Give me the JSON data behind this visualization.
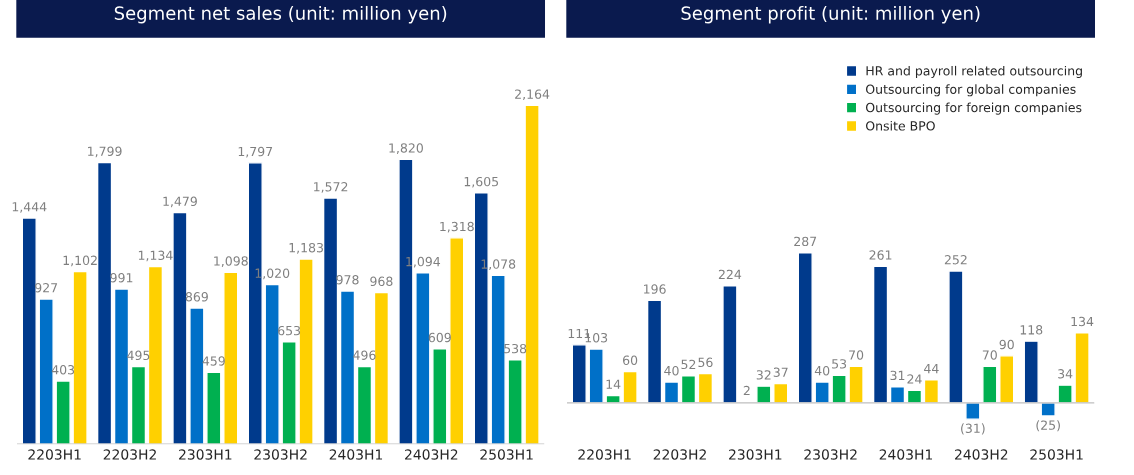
{
  "chart_data": [
    {
      "type": "bar",
      "title": "Segment net sales (unit: million yen)",
      "categories": [
        "2203H1",
        "2203H2",
        "2303H1",
        "2303H2",
        "2403H1",
        "2403H2",
        "2503H1"
      ],
      "tick_labels": "x",
      "grid": false,
      "legend": false,
      "series": [
        {
          "color": "#003a8c",
          "values": [
            1444,
            1799,
            1479,
            1797,
            1572,
            1820,
            1605
          ],
          "value_labels": [
            "1,444",
            "1,799",
            "1,479",
            "1,797",
            "1,572",
            "1,820",
            "1,605"
          ]
        },
        {
          "color": "#0070c8",
          "values": [
            927,
            991,
            869,
            1020,
            978,
            1094,
            1078
          ],
          "value_labels": [
            "927",
            "991",
            "869",
            "1,020",
            "978",
            "1,094",
            "1,078"
          ]
        },
        {
          "color": "#00b050",
          "values": [
            403,
            495,
            459,
            653,
            496,
            609,
            538
          ],
          "value_labels": [
            "403",
            "495",
            "459",
            "653",
            "496",
            "609",
            "538"
          ]
        },
        {
          "color": "#ffd000",
          "values": [
            1102,
            1134,
            1098,
            1183,
            968,
            1318,
            2164
          ],
          "value_labels": [
            "1,102",
            "1,134",
            "1,098",
            "1,183",
            "968",
            "1,318",
            "2,164"
          ]
        }
      ]
    },
    {
      "type": "bar",
      "title": "Segment profit (unit: million yen)",
      "categories": [
        "2203H1",
        "2203H2",
        "2303H1",
        "2303H2",
        "2403H1",
        "2403H2",
        "2503H1"
      ],
      "tick_labels": "x",
      "grid": false,
      "legend": "top right",
      "series": [
        {
          "name": "HR and payroll related outsourcing",
          "color": "#003a8c",
          "values": [
            111,
            196,
            224,
            287,
            261,
            252,
            118
          ],
          "value_labels": [
            "111",
            "196",
            "224",
            "287",
            "261",
            "252",
            "118"
          ]
        },
        {
          "name": "Outsourcing for global companies",
          "color": "#0070c8",
          "values": [
            103,
            40,
            2,
            40,
            31,
            -31,
            -25
          ],
          "value_labels": [
            "103",
            "40",
            "2",
            "40",
            "31",
            "(31)",
            "(25)"
          ]
        },
        {
          "name": "Outsourcing for foreign companies",
          "color": "#00b050",
          "values": [
            14,
            52,
            32,
            53,
            24,
            70,
            34
          ],
          "value_labels": [
            "14",
            "52",
            "32",
            "53",
            "24",
            "70",
            "34"
          ]
        },
        {
          "name": "Onsite BPO",
          "color": "#ffd000",
          "values": [
            60,
            56,
            37,
            70,
            44,
            90,
            134
          ],
          "value_labels": [
            "60",
            "56",
            "37",
            "70",
            "44",
            "90",
            "134"
          ]
        }
      ]
    }
  ]
}
